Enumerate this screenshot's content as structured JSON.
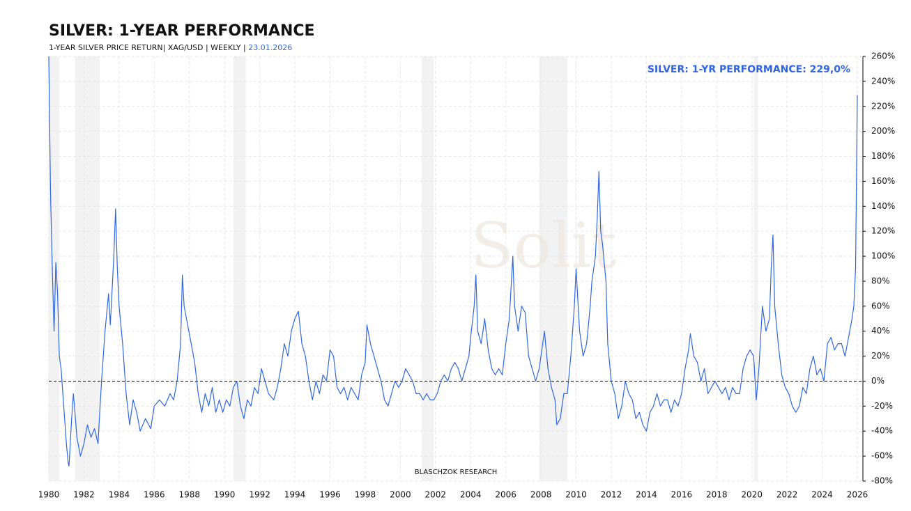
{
  "chart_data": {
    "type": "line",
    "title": "SILVER: 1-YEAR PERFORMANCE",
    "subtitle": "1-YEAR SILVER PRICE RETURN| XAG/USD | WEEKLY | ",
    "date": "23.01.2026",
    "annotation": "SILVER: 1-YR PERFORMANCE: 229,0%",
    "source": "BLASCHZOK  RESEARCH",
    "watermark": "Solit",
    "xlim": [
      1980,
      2026.2
    ],
    "xticks": [
      1980,
      1982,
      1984,
      1986,
      1988,
      1990,
      1992,
      1994,
      1996,
      1998,
      2000,
      2002,
      2004,
      2006,
      2008,
      2010,
      2012,
      2014,
      2016,
      2018,
      2020,
      2022,
      2024,
      2026
    ],
    "ylim": [
      -80,
      260
    ],
    "yticks": [
      {
        "value": -80,
        "label": "-80%"
      },
      {
        "value": -60,
        "label": "-60%"
      },
      {
        "value": -40,
        "label": "-40%"
      },
      {
        "value": -20,
        "label": "-20%"
      },
      {
        "value": 0,
        "label": "0%"
      },
      {
        "value": 20,
        "label": "20%"
      },
      {
        "value": 40,
        "label": "40%"
      },
      {
        "value": 60,
        "label": "60%"
      },
      {
        "value": 80,
        "label": "80%"
      },
      {
        "value": 100,
        "label": "100%"
      },
      {
        "value": 120,
        "label": "120%"
      },
      {
        "value": 140,
        "label": "140%"
      },
      {
        "value": 160,
        "label": "160%"
      },
      {
        "value": 180,
        "label": "180%"
      },
      {
        "value": 200,
        "label": "200%"
      },
      {
        "value": 220,
        "label": "220%"
      },
      {
        "value": 240,
        "label": "240%"
      },
      {
        "value": 260,
        "label": "260%"
      }
    ],
    "y_axis_side": "right",
    "grid": true,
    "zero_line": true,
    "shaded_periods": [
      [
        1980.0,
        1980.6
      ],
      [
        1981.5,
        1982.9
      ],
      [
        1990.5,
        1991.2
      ],
      [
        2001.2,
        2001.9
      ],
      [
        2007.9,
        2009.5
      ],
      [
        2020.1,
        2020.35
      ]
    ],
    "shade_color": "#f2f2f2",
    "x": [
      1980.0,
      1980.1,
      1980.2,
      1980.3,
      1980.4,
      1980.5,
      1980.6,
      1980.7,
      1980.9,
      1981.0,
      1981.1,
      1981.15,
      1981.3,
      1981.4,
      1981.6,
      1981.8,
      1982.0,
      1982.2,
      1982.4,
      1982.6,
      1982.8,
      1983.0,
      1983.2,
      1983.4,
      1983.5,
      1983.7,
      1983.8,
      1983.9,
      1984.0,
      1984.2,
      1984.4,
      1984.6,
      1984.8,
      1985.0,
      1985.2,
      1985.5,
      1985.8,
      1986.0,
      1986.3,
      1986.6,
      1986.9,
      1987.1,
      1987.3,
      1987.5,
      1987.6,
      1987.7,
      1987.9,
      1988.1,
      1988.3,
      1988.5,
      1988.7,
      1988.9,
      1989.1,
      1989.3,
      1989.5,
      1989.7,
      1989.9,
      1990.1,
      1990.3,
      1990.5,
      1990.7,
      1990.9,
      1991.1,
      1991.3,
      1991.5,
      1991.7,
      1991.9,
      1992.1,
      1992.3,
      1992.5,
      1992.8,
      1993.0,
      1993.2,
      1993.4,
      1993.6,
      1993.8,
      1994.0,
      1994.2,
      1994.4,
      1994.6,
      1994.8,
      1995.0,
      1995.2,
      1995.4,
      1995.6,
      1995.8,
      1996.0,
      1996.2,
      1996.4,
      1996.6,
      1996.8,
      1997.0,
      1997.2,
      1997.4,
      1997.6,
      1997.8,
      1998.0,
      1998.1,
      1998.3,
      1998.5,
      1998.7,
      1998.9,
      1999.1,
      1999.3,
      1999.5,
      1999.7,
      1999.9,
      2000.1,
      2000.3,
      2000.5,
      2000.7,
      2000.9,
      2001.1,
      2001.3,
      2001.5,
      2001.7,
      2001.9,
      2002.1,
      2002.3,
      2002.5,
      2002.7,
      2002.9,
      2003.1,
      2003.3,
      2003.5,
      2003.7,
      2003.9,
      2004.0,
      2004.2,
      2004.3,
      2004.4,
      2004.6,
      2004.8,
      2005.0,
      2005.2,
      2005.4,
      2005.6,
      2005.8,
      2006.0,
      2006.2,
      2006.4,
      2006.5,
      2006.7,
      2006.9,
      2007.1,
      2007.3,
      2007.5,
      2007.7,
      2007.9,
      2008.1,
      2008.2,
      2008.4,
      2008.6,
      2008.8,
      2008.9,
      2009.1,
      2009.3,
      2009.5,
      2009.7,
      2009.9,
      2010.0,
      2010.2,
      2010.4,
      2010.6,
      2010.8,
      2010.9,
      2011.1,
      2011.2,
      2011.3,
      2011.4,
      2011.5,
      2011.7,
      2011.8,
      2012.0,
      2012.2,
      2012.4,
      2012.6,
      2012.8,
      2013.0,
      2013.2,
      2013.4,
      2013.6,
      2013.8,
      2014.0,
      2014.2,
      2014.4,
      2014.6,
      2014.8,
      2015.0,
      2015.2,
      2015.4,
      2015.6,
      2015.8,
      2016.0,
      2016.2,
      2016.4,
      2016.5,
      2016.7,
      2016.9,
      2017.1,
      2017.3,
      2017.5,
      2017.7,
      2017.9,
      2018.1,
      2018.3,
      2018.5,
      2018.7,
      2018.9,
      2019.1,
      2019.3,
      2019.5,
      2019.7,
      2019.9,
      2020.1,
      2020.25,
      2020.4,
      2020.6,
      2020.8,
      2021.0,
      2021.1,
      2021.2,
      2021.3,
      2021.5,
      2021.7,
      2021.9,
      2022.1,
      2022.3,
      2022.5,
      2022.7,
      2022.9,
      2023.1,
      2023.3,
      2023.5,
      2023.7,
      2023.9,
      2024.1,
      2024.3,
      2024.5,
      2024.7,
      2024.9,
      2025.1,
      2025.3,
      2025.5,
      2025.7,
      2025.8,
      2025.9,
      2025.95,
      2026.0
    ],
    "series": [
      {
        "name": "SILVER",
        "color": "#2f66e0",
        "values": [
          260,
          150,
          90,
          40,
          95,
          70,
          20,
          10,
          -30,
          -50,
          -65,
          -68,
          -30,
          -10,
          -45,
          -60,
          -50,
          -35,
          -45,
          -38,
          -50,
          0,
          40,
          70,
          45,
          100,
          138,
          90,
          60,
          30,
          -10,
          -35,
          -15,
          -25,
          -40,
          -30,
          -38,
          -20,
          -15,
          -20,
          -10,
          -15,
          0,
          30,
          85,
          60,
          45,
          30,
          15,
          -10,
          -25,
          -10,
          -20,
          -5,
          -25,
          -15,
          -25,
          -15,
          -20,
          -5,
          0,
          -20,
          -30,
          -15,
          -20,
          -5,
          -10,
          10,
          0,
          -10,
          -15,
          -5,
          10,
          30,
          20,
          40,
          50,
          56,
          30,
          20,
          0,
          -15,
          0,
          -10,
          5,
          0,
          25,
          20,
          -5,
          -10,
          -5,
          -15,
          -5,
          -10,
          -15,
          5,
          15,
          45,
          30,
          20,
          10,
          0,
          -15,
          -20,
          -10,
          0,
          -5,
          0,
          10,
          5,
          0,
          -10,
          -10,
          -15,
          -10,
          -15,
          -15,
          -10,
          0,
          5,
          0,
          10,
          15,
          10,
          0,
          10,
          20,
          35,
          60,
          85,
          40,
          30,
          50,
          25,
          10,
          5,
          10,
          5,
          30,
          50,
          100,
          60,
          40,
          60,
          55,
          20,
          10,
          0,
          10,
          30,
          40,
          10,
          -5,
          -15,
          -35,
          -30,
          -10,
          -10,
          20,
          60,
          90,
          40,
          20,
          30,
          60,
          80,
          100,
          130,
          168,
          120,
          110,
          80,
          30,
          0,
          -10,
          -30,
          -20,
          0,
          -10,
          -15,
          -30,
          -25,
          -35,
          -40,
          -25,
          -20,
          -10,
          -20,
          -15,
          -15,
          -25,
          -15,
          -20,
          -10,
          10,
          25,
          38,
          20,
          15,
          0,
          10,
          -10,
          -5,
          0,
          -5,
          -10,
          -5,
          -15,
          -5,
          -10,
          -10,
          10,
          20,
          25,
          20,
          -15,
          10,
          60,
          40,
          50,
          90,
          117,
          60,
          30,
          5,
          -5,
          -10,
          -20,
          -25,
          -20,
          -5,
          -10,
          10,
          20,
          5,
          10,
          0,
          30,
          35,
          25,
          30,
          30,
          20,
          35,
          50,
          60,
          90,
          160,
          229
        ]
      }
    ]
  }
}
